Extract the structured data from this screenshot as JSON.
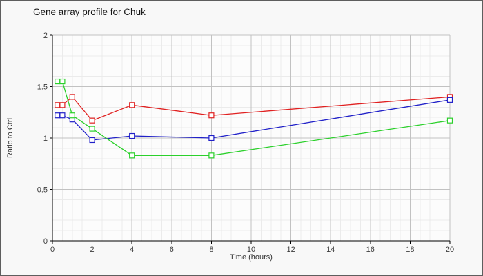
{
  "window": {
    "background_color": "#f8f8f8",
    "border_color": "#5e5e5e"
  },
  "chart_data": {
    "type": "line",
    "title": "Gene array profile for Chuk",
    "xlabel": "Time (hours)",
    "ylabel": "Ratio to Ctrl",
    "xlim": [
      0,
      20
    ],
    "ylim": [
      0,
      2
    ],
    "x": [
      0.25,
      0.5,
      1,
      2,
      4,
      8,
      20
    ],
    "series": [
      {
        "name": "red",
        "color": "#e02020",
        "marker": "open-square",
        "values": [
          1.32,
          1.32,
          1.4,
          1.17,
          1.32,
          1.22,
          1.4
        ]
      },
      {
        "name": "blue",
        "color": "#2020c8",
        "marker": "open-square",
        "values": [
          1.22,
          1.22,
          1.18,
          0.98,
          1.02,
          1.0,
          1.37
        ]
      },
      {
        "name": "green",
        "color": "#2bd02b",
        "marker": "open-square",
        "values": [
          1.55,
          1.55,
          1.22,
          1.09,
          0.83,
          0.83,
          1.17
        ]
      }
    ],
    "xticks": [
      0,
      2,
      4,
      6,
      8,
      10,
      12,
      14,
      16,
      18,
      20
    ],
    "xtick_labels": [
      "0",
      "2",
      "4",
      "6",
      "8",
      "10",
      "12",
      "14",
      "16",
      "18",
      "20"
    ],
    "yticks": [
      0,
      0.5,
      1,
      1.5,
      2
    ],
    "ytick_labels": [
      "0",
      "0.5",
      "1",
      "1.5",
      "2"
    ],
    "grid": {
      "on": true,
      "minor_x_step": 0.5,
      "minor_y_step": 0.1,
      "major_x_step": 2,
      "major_y_step": 0.5,
      "minor_color": "#ebebeb",
      "major_color": "#c2c2c2"
    },
    "plot_background": "#fcfcfc",
    "axis_color": "#000000",
    "tick_label_color": "#3c3c3c",
    "legend": "none"
  }
}
